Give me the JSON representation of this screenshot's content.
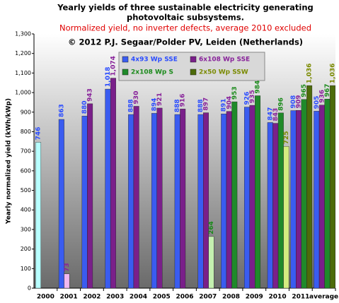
{
  "chart_data": {
    "type": "bar",
    "title": "Yearly yields of three sustainable electricity generating",
    "title_line2": "photovoltaic subsystems.",
    "subtitle": "Normalized yield, no inverter defects, average 2010 excluded",
    "annotation": "© 2012 P.J. Segaar/Polder PV, Leiden (Netherlands)",
    "ylabel": "Yearly normalized yield (kWh/kWp)",
    "categories": [
      "2000",
      "2001",
      "2002",
      "2003",
      "2004",
      "2005",
      "2006",
      "2007",
      "2008",
      "2009",
      "2010",
      "2011",
      "average"
    ],
    "ylim": [
      0,
      1300
    ],
    "yticks": [
      0,
      100,
      200,
      300,
      400,
      500,
      600,
      700,
      800,
      900,
      {
        "value": 1000,
        "label": "1,000"
      },
      {
        "value": 1100,
        "label": "1,100"
      },
      {
        "value": 1200,
        "label": "1,200"
      },
      {
        "value": 1300,
        "label": "1,300"
      }
    ],
    "series": [
      {
        "name": "4x93 Wp SSE",
        "color": "#3a5cf0",
        "values": [
          746,
          863,
          880,
          1018,
          888,
          894,
          888,
          888,
          891,
          926,
          847,
          908,
          905
        ],
        "value_labels": [
          "746",
          "863",
          "880",
          "1,018",
          "888",
          "894",
          "888",
          "888",
          "891",
          "926",
          "847",
          "908",
          "905"
        ],
        "colors": [
          "#b8ffff",
          "#3a5cf0",
          "#3a5cf0",
          "#3a5cf0",
          "#3a5cf0",
          "#3a5cf0",
          "#3a5cf0",
          "#3a5cf0",
          "#3a5cf0",
          "#3a5cf0",
          "#3a5cf0",
          "#3a5cf0",
          "#3a5cf0"
        ]
      },
      {
        "name": "6x108 Wp SSE",
        "color": "#7a1f8a",
        "values": [
          null,
          73,
          943,
          1074,
          930,
          921,
          916,
          897,
          904,
          935,
          843,
          909,
          936
        ],
        "value_labels": [
          null,
          "73",
          "943",
          "1,074",
          "930",
          "921",
          "916",
          "897",
          "904",
          "935",
          "843",
          "909",
          "936"
        ],
        "colors": [
          null,
          "#f0b8f0",
          "#7a1f8a",
          "#7a1f8a",
          "#7a1f8a",
          "#7a1f8a",
          "#7a1f8a",
          "#7a1f8a",
          "#7a1f8a",
          "#7a1f8a",
          "#7a1f8a",
          "#7a1f8a",
          "#7a1f8a"
        ]
      },
      {
        "name": "2x108 Wp S",
        "color": "#1f8a2a",
        "values": [
          null,
          null,
          null,
          null,
          null,
          null,
          null,
          264,
          953,
          984,
          896,
          965,
          967
        ],
        "value_labels": [
          null,
          null,
          null,
          null,
          null,
          null,
          null,
          "264",
          "953",
          "984",
          "896",
          "965",
          "967"
        ],
        "colors": [
          null,
          null,
          null,
          null,
          null,
          null,
          null,
          "#c4f0b0",
          "#1f8a2a",
          "#1f8a2a",
          "#1f8a2a",
          "#1f8a2a",
          "#1f8a2a"
        ]
      },
      {
        "name": "2x50 Wp SSW",
        "color": "#4d6b0a",
        "values": [
          null,
          null,
          null,
          null,
          null,
          null,
          null,
          null,
          null,
          null,
          725,
          1036,
          1036
        ],
        "value_labels": [
          null,
          null,
          null,
          null,
          null,
          null,
          null,
          null,
          null,
          null,
          "725",
          "1,036",
          "1,036"
        ],
        "colors": [
          null,
          null,
          null,
          null,
          null,
          null,
          null,
          null,
          null,
          null,
          "#d4ec80",
          "#4d6b0a",
          "#4d6b0a"
        ]
      }
    ],
    "label_colors": [
      "#2a4cff",
      "#88229a",
      "#1a8a1a",
      "#7a8a00"
    ]
  }
}
